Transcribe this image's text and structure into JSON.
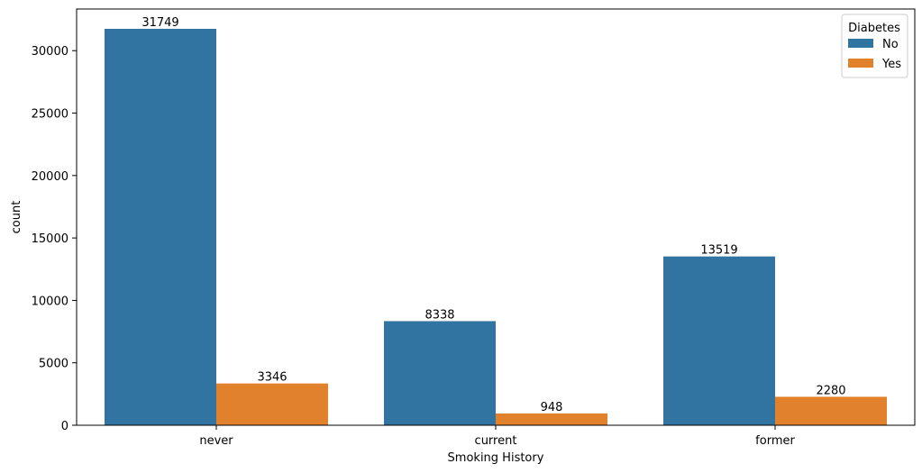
{
  "chart_data": {
    "type": "bar",
    "title": "",
    "xlabel": "Smoking History",
    "ylabel": "count",
    "categories": [
      "never",
      "current",
      "former"
    ],
    "series": [
      {
        "name": "No",
        "color": "#3274a1",
        "values": [
          31749,
          8338,
          13519
        ]
      },
      {
        "name": "Yes",
        "color": "#e1812c",
        "values": [
          3346,
          948,
          2280
        ]
      }
    ],
    "data_labels": [
      [
        "31749",
        "8338",
        "13519"
      ],
      [
        "3346",
        "948",
        "2280"
      ]
    ],
    "ylim": [
      0,
      33336
    ],
    "yticks": [
      0,
      5000,
      10000,
      15000,
      20000,
      25000,
      30000
    ],
    "ytick_labels": [
      "0",
      "5000",
      "10000",
      "15000",
      "20000",
      "25000",
      "30000"
    ],
    "legend": {
      "title": "Diabetes",
      "placement": "top-right"
    },
    "grid": false
  }
}
